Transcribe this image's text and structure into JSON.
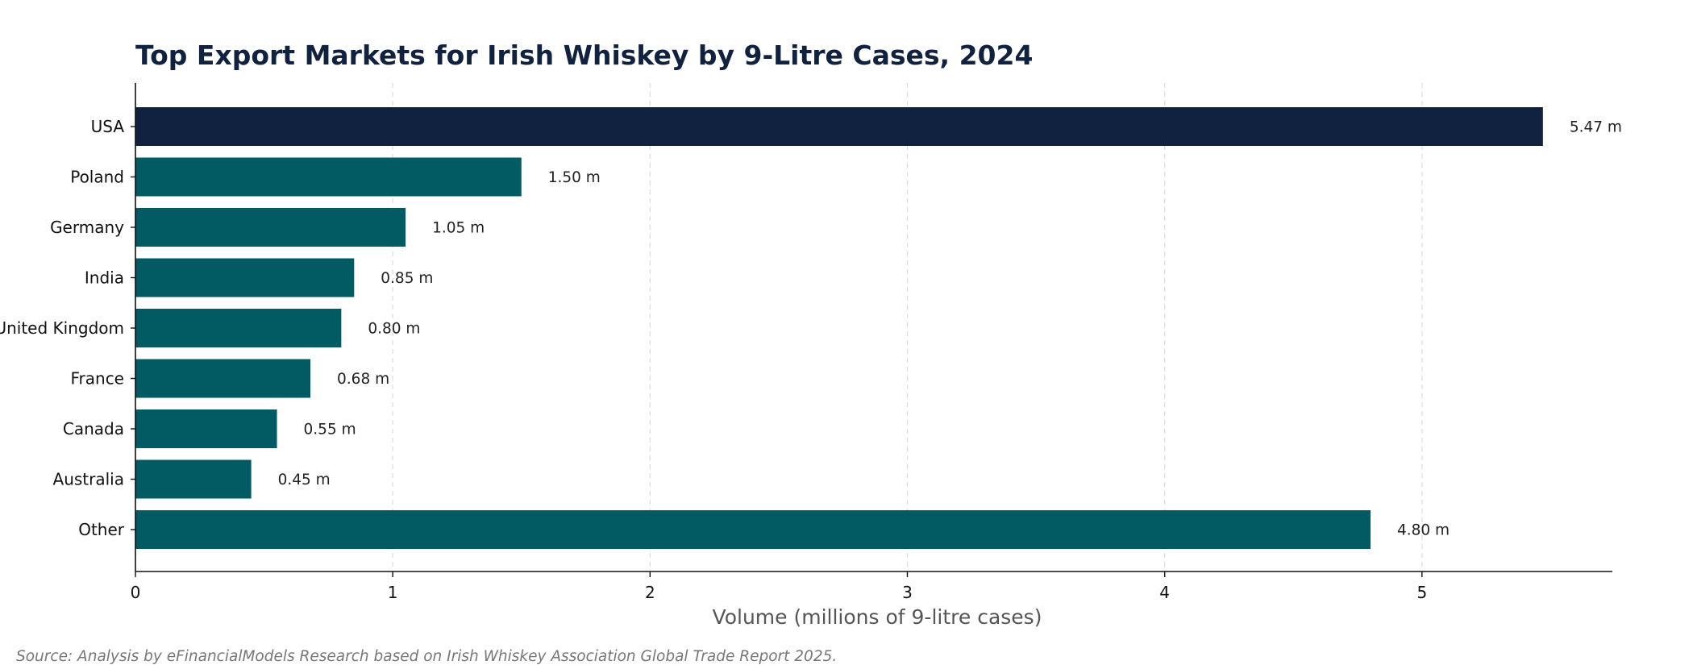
{
  "chart_data": {
    "type": "bar",
    "orientation": "horizontal",
    "title": "Top Export Markets for Irish Whiskey by 9-Litre Cases, 2024",
    "xlabel": "Volume (millions of 9-litre cases)",
    "ylabel": "",
    "categories": [
      "USA",
      "Poland",
      "Germany",
      "India",
      "United Kingdom",
      "France",
      "Canada",
      "Australia",
      "Other"
    ],
    "values": [
      5.47,
      1.5,
      1.05,
      0.85,
      0.8,
      0.68,
      0.55,
      0.45,
      4.8
    ],
    "value_labels": [
      "5.47 m",
      "1.50 m",
      "1.05 m",
      "0.85 m",
      "0.80 m",
      "0.68 m",
      "0.55 m",
      "0.45 m",
      "4.80 m"
    ],
    "xlim": [
      0,
      5.74
    ],
    "xticks": [
      0,
      1,
      2,
      3,
      4,
      5
    ],
    "xtick_labels": [
      "0",
      "1",
      "2",
      "3",
      "4",
      "5"
    ],
    "grid": "vertical dashed",
    "legend": "none",
    "colors": {
      "highlight": "#10223f",
      "default": "#025b63"
    },
    "highlight_category": "USA"
  },
  "source": "Source: Analysis by eFinancialModels Research based on Irish Whiskey Association Global Trade Report 2025."
}
